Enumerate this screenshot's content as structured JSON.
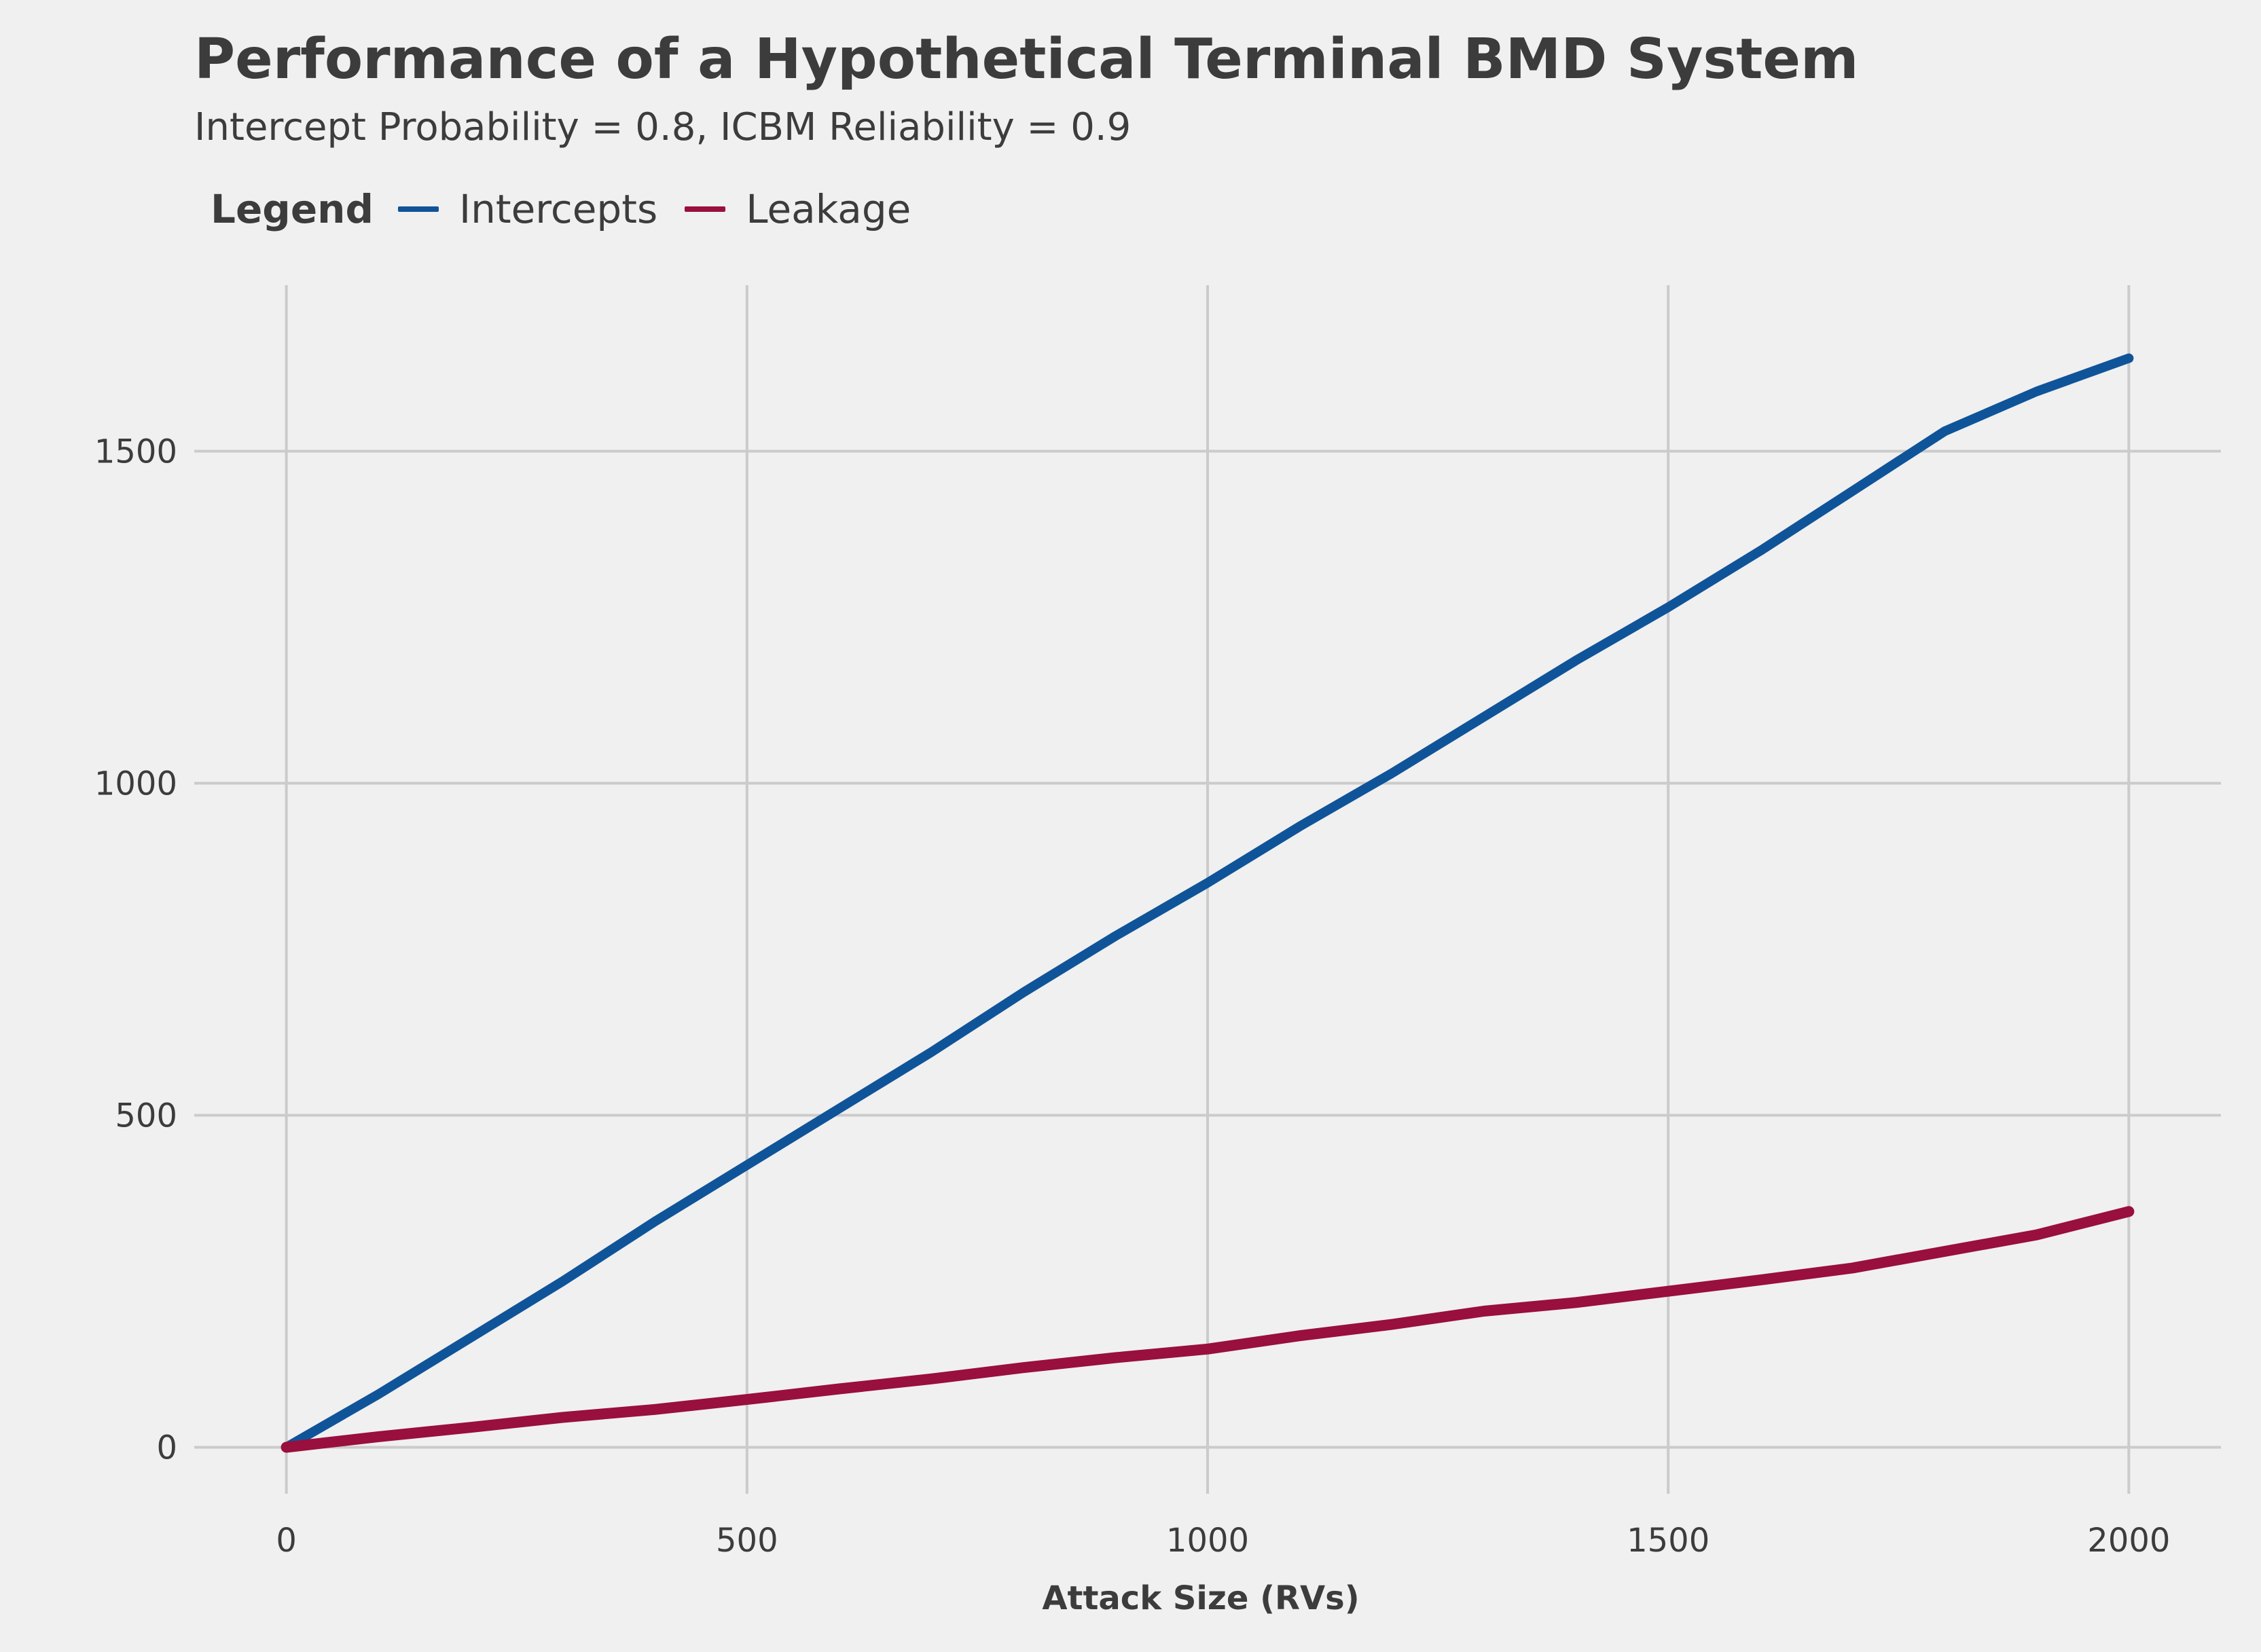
{
  "chart_data": {
    "type": "line",
    "title": "Performance of a Hypothetical Terminal BMD System",
    "subtitle": "Intercept Probability = 0.8, ICBM Reliability = 0.9",
    "xlabel": "Attack Size (RVs)",
    "ylabel": "",
    "xlim": [
      -100,
      2100
    ],
    "ylim": [
      -70,
      1750
    ],
    "x_ticks": [
      0,
      500,
      1000,
      1500,
      2000
    ],
    "y_ticks": [
      0,
      500,
      1000,
      1500
    ],
    "grid": true,
    "legend_title": "Legend",
    "legend_position": "top-left",
    "series": [
      {
        "name": "Intercepts",
        "color": "#0f5499",
        "x": [
          0,
          100,
          200,
          300,
          400,
          500,
          600,
          700,
          800,
          900,
          1000,
          1100,
          1200,
          1300,
          1400,
          1500,
          1600,
          1700,
          1800,
          1900,
          2000
        ],
        "values": [
          0,
          80,
          165,
          250,
          340,
          425,
          510,
          595,
          685,
          770,
          850,
          935,
          1015,
          1100,
          1185,
          1265,
          1350,
          1440,
          1530,
          1590,
          1640
        ]
      },
      {
        "name": "Leakage",
        "color": "#990f3d",
        "x": [
          0,
          100,
          200,
          300,
          400,
          500,
          600,
          700,
          800,
          900,
          1000,
          1100,
          1200,
          1300,
          1400,
          1500,
          1600,
          1700,
          1800,
          1900,
          2000
        ],
        "values": [
          0,
          16,
          30,
          45,
          57,
          72,
          88,
          103,
          120,
          135,
          148,
          168,
          185,
          205,
          218,
          235,
          252,
          270,
          295,
          320,
          355
        ]
      }
    ]
  }
}
